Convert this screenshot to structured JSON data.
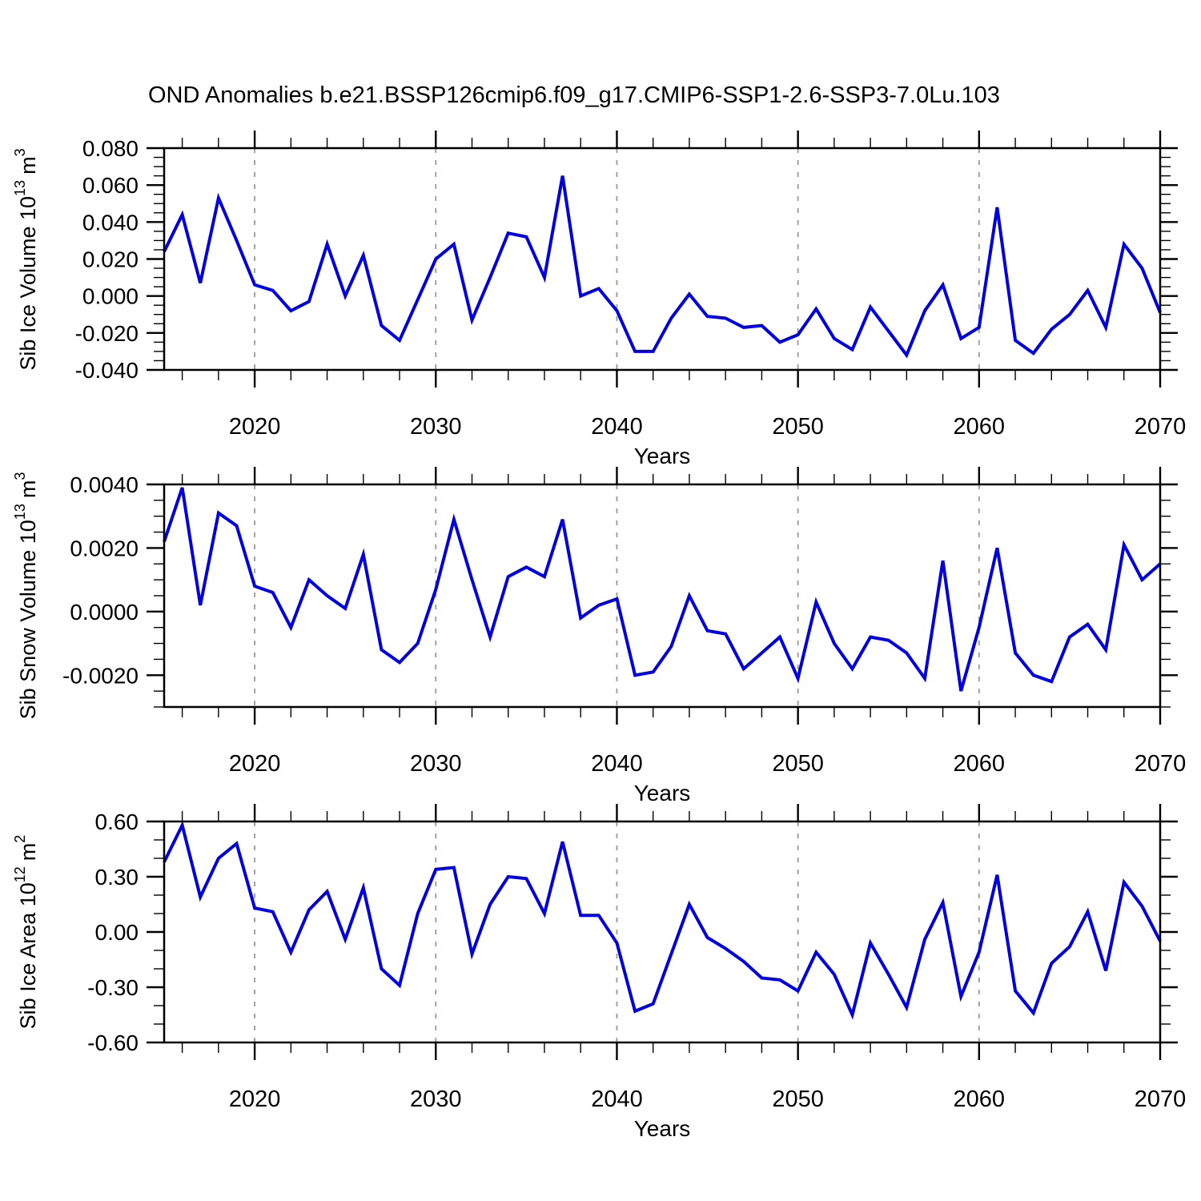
{
  "title": "OND Anomalies b.e21.BSSP126cmip6.f09_g17.CMIP6-SSP1-2.6-SSP3-7.0Lu.103",
  "line_color": "#0000e0",
  "gridline_color": "#999999",
  "axis_color": "#000000",
  "chart_data": [
    {
      "type": "line",
      "series_name": "Siberian ice volume OND anomaly",
      "ylabel": {
        "base": "Sib Ice Volume 10",
        "exp": "13",
        "unit": "m",
        "unit_exp": "3"
      },
      "xlabel": "Years",
      "x_range": [
        2015,
        2070
      ],
      "x_step": 1,
      "ylim": [
        -0.04,
        0.08
      ],
      "y_major": 0.02,
      "y_minor": 0.005,
      "y_tick_labels": [
        "0.080",
        "0.060",
        "0.040",
        "0.020",
        "0.000",
        "-0.020",
        "-0.040"
      ],
      "x_tick_years": [
        2020,
        2030,
        2040,
        2050,
        2060,
        2070
      ],
      "x_tick_labels": [
        "2020",
        "2030",
        "2040",
        "2050",
        "2060",
        "2070"
      ],
      "x_minor_step": 2,
      "x_gridlines": [
        2020,
        2030,
        2040,
        2050,
        2060
      ],
      "grid": "dashed vertical at decades",
      "legend": "none",
      "values": [
        0.024,
        0.044,
        0.007,
        0.053,
        0.03,
        0.006,
        0.003,
        -0.008,
        -0.003,
        0.028,
        0.0,
        0.022,
        -0.016,
        -0.024,
        -0.002,
        0.02,
        0.028,
        -0.013,
        0.01,
        0.034,
        0.032,
        0.01,
        0.065,
        0.0,
        0.004,
        -0.008,
        -0.03,
        -0.03,
        -0.012,
        0.001,
        -0.011,
        -0.012,
        -0.017,
        -0.016,
        -0.025,
        -0.021,
        -0.007,
        -0.023,
        -0.029,
        -0.006,
        -0.019,
        -0.032,
        -0.008,
        0.006,
        -0.023,
        -0.017,
        0.048,
        -0.024,
        -0.031,
        -0.018,
        -0.01,
        0.003,
        -0.017,
        0.028,
        0.015,
        -0.009
      ]
    },
    {
      "type": "line",
      "series_name": "Siberian snow volume OND anomaly",
      "ylabel": {
        "base": "Sib Snow Volume 10",
        "exp": "13",
        "unit": "m",
        "unit_exp": "3"
      },
      "xlabel": "Years",
      "x_range": [
        2015,
        2070
      ],
      "x_step": 1,
      "ylim": [
        -0.003,
        0.004
      ],
      "y_major": 0.002,
      "y_minor": 0.0005,
      "y_tick_labels": [
        "0.0040",
        "0.0020",
        "0.0000",
        "-0.0020"
      ],
      "x_tick_years": [
        2020,
        2030,
        2040,
        2050,
        2060,
        2070
      ],
      "x_tick_labels": [
        "2020",
        "2030",
        "2040",
        "2050",
        "2060",
        "2070"
      ],
      "x_minor_step": 2,
      "x_gridlines": [
        2020,
        2030,
        2040,
        2050,
        2060
      ],
      "grid": "dashed vertical at decades",
      "legend": "none",
      "values": [
        0.0022,
        0.0039,
        0.0002,
        0.0031,
        0.0027,
        0.0008,
        0.0006,
        -0.0005,
        0.001,
        0.0005,
        0.0001,
        0.0018,
        -0.0012,
        -0.0016,
        -0.001,
        0.0007,
        0.0029,
        0.001,
        -0.0008,
        0.0011,
        0.0014,
        0.0011,
        0.0029,
        -0.0002,
        0.0002,
        0.0004,
        -0.002,
        -0.0019,
        -0.0011,
        0.0005,
        -0.0006,
        -0.0007,
        -0.0018,
        -0.0013,
        -0.0008,
        -0.0021,
        0.0003,
        -0.001,
        -0.0018,
        -0.0008,
        -0.0009,
        -0.0013,
        -0.0021,
        0.0016,
        -0.0025,
        -0.0005,
        0.002,
        -0.0013,
        -0.002,
        -0.0022,
        -0.0008,
        -0.0004,
        -0.0012,
        0.0021,
        0.001,
        0.0015
      ]
    },
    {
      "type": "line",
      "series_name": "Siberian ice area OND anomaly",
      "ylabel": {
        "base": "Sib Ice Area 10",
        "exp": "12",
        "unit": "m",
        "unit_exp": "2"
      },
      "xlabel": "Years",
      "x_range": [
        2015,
        2070
      ],
      "x_step": 1,
      "ylim": [
        -0.6,
        0.6
      ],
      "y_major": 0.3,
      "y_minor": 0.1,
      "y_tick_labels": [
        "0.60",
        "0.30",
        "0.00",
        "-0.30",
        "-0.60"
      ],
      "x_tick_years": [
        2020,
        2030,
        2040,
        2050,
        2060,
        2070
      ],
      "x_tick_labels": [
        "2020",
        "2030",
        "2040",
        "2050",
        "2060",
        "2070"
      ],
      "x_minor_step": 2,
      "x_gridlines": [
        2020,
        2030,
        2040,
        2050,
        2060
      ],
      "grid": "dashed vertical at decades",
      "legend": "none",
      "values": [
        0.38,
        0.58,
        0.19,
        0.4,
        0.48,
        0.13,
        0.11,
        -0.11,
        0.12,
        0.22,
        -0.04,
        0.24,
        -0.2,
        -0.29,
        0.1,
        0.34,
        0.35,
        -0.12,
        0.15,
        0.3,
        0.29,
        0.1,
        0.49,
        0.09,
        0.09,
        -0.06,
        -0.43,
        -0.39,
        -0.12,
        0.15,
        -0.03,
        -0.09,
        -0.16,
        -0.25,
        -0.26,
        -0.32,
        -0.11,
        -0.23,
        -0.45,
        -0.06,
        -0.23,
        -0.41,
        -0.04,
        0.16,
        -0.35,
        -0.11,
        0.31,
        -0.32,
        -0.44,
        -0.17,
        -0.08,
        0.11,
        -0.21,
        0.27,
        0.14,
        -0.05
      ]
    }
  ]
}
